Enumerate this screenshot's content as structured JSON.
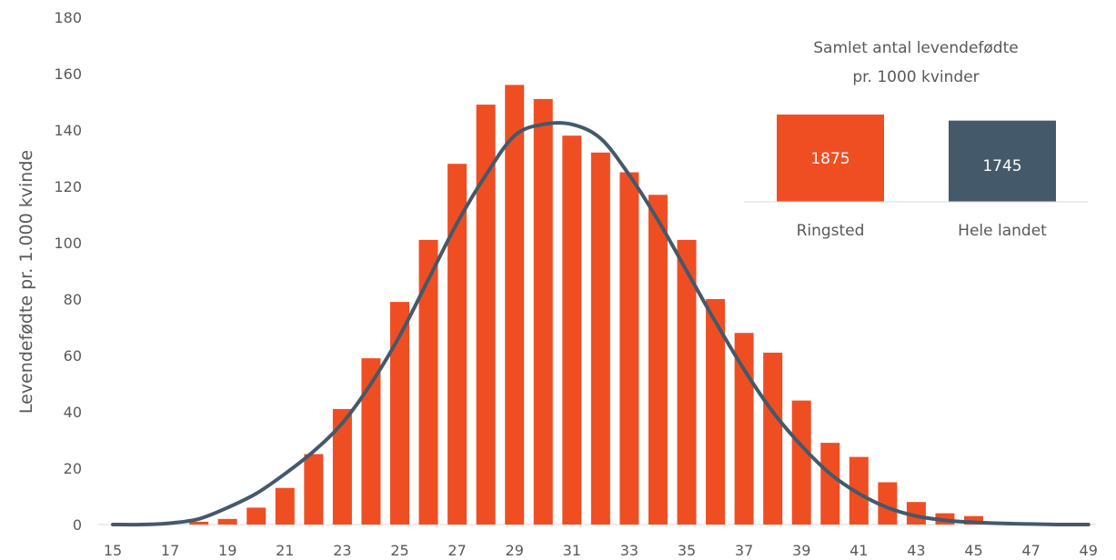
{
  "chart_data": [
    {
      "type": "bar",
      "ylabel": "Levendefødte pr. 1.000 kvinde",
      "ylim": [
        0,
        180
      ],
      "y_ticks": [
        "0",
        "20",
        "40",
        "60",
        "80",
        "100",
        "120",
        "140",
        "160",
        "180"
      ],
      "x_ticks": [
        "15",
        "17",
        "19",
        "21",
        "23",
        "25",
        "27",
        "29",
        "31",
        "33",
        "35",
        "37",
        "39",
        "41",
        "43",
        "45",
        "47",
        "49"
      ],
      "x": [
        15,
        16,
        17,
        18,
        19,
        20,
        21,
        22,
        23,
        24,
        25,
        26,
        27,
        28,
        29,
        30,
        31,
        32,
        33,
        34,
        35,
        36,
        37,
        38,
        39,
        40,
        41,
        42,
        43,
        44,
        45,
        46,
        47,
        48,
        49
      ],
      "series": [
        {
          "kind": "bar",
          "color": "#EF4E23",
          "values": [
            0,
            0,
            0,
            1,
            2,
            6,
            13,
            25,
            41,
            59,
            79,
            101,
            128,
            149,
            156,
            151,
            138,
            132,
            125,
            117,
            101,
            80,
            68,
            61,
            44,
            29,
            24,
            15,
            8,
            4,
            3,
            1,
            0,
            0,
            0
          ]
        },
        {
          "kind": "line",
          "color": "#44596A",
          "values": [
            0,
            0,
            0.5,
            2,
            6,
            11,
            18,
            26,
            36,
            50,
            67,
            87,
            107,
            124,
            138,
            142,
            142,
            137,
            124,
            108,
            90,
            72,
            55,
            40,
            28,
            18,
            11,
            6,
            3,
            1.5,
            0.8,
            0.4,
            0.2,
            0,
            0
          ]
        }
      ],
      "grid": false
    },
    {
      "type": "bar",
      "title": "Samlet antal levendefødte pr. 1000 kvinder",
      "title_lines": [
        "Samlet antal levendefødte",
        "pr. 1000 kvinder"
      ],
      "categories": [
        "Ringsted",
        "Hele landet"
      ],
      "values": [
        1875,
        1745
      ],
      "value_labels": [
        "1875",
        "1745"
      ],
      "colors": [
        "#EF4E23",
        "#44596A"
      ]
    }
  ]
}
